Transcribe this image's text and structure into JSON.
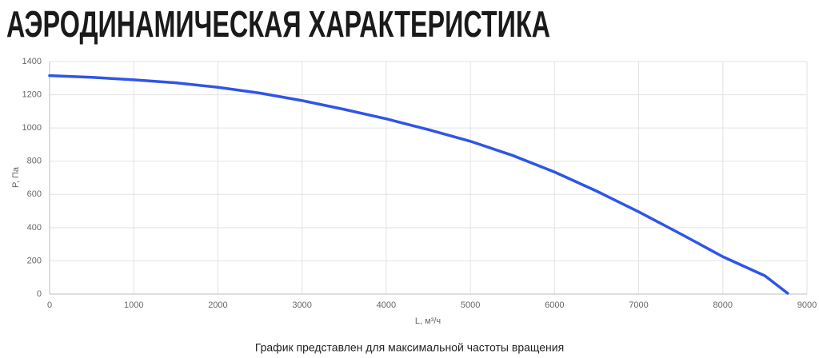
{
  "chart_data": {
    "type": "line",
    "title": "АЭРОДИНАМИЧЕСКАЯ ХАРАКТЕРИСТИКА",
    "x_label": "L, м³/ч",
    "y_label": "P, Па",
    "note": "График представлен для максимальной частоты вращения",
    "x": [
      0,
      500,
      1000,
      1500,
      2000,
      2500,
      3000,
      3500,
      4000,
      4500,
      5000,
      5500,
      6000,
      6500,
      7000,
      7500,
      8000,
      8500,
      8770
    ],
    "series": [
      {
        "color": "#2f55e8",
        "values": [
          1315,
          1305,
          1290,
          1272,
          1245,
          1210,
          1165,
          1112,
          1055,
          990,
          920,
          835,
          735,
          620,
          495,
          362,
          225,
          110,
          5
        ]
      }
    ],
    "xlim": [
      0,
      9000
    ],
    "xticks": [
      0,
      1000,
      2000,
      3000,
      4000,
      5000,
      6000,
      7000,
      8000,
      9000
    ],
    "ylim": [
      0,
      1400
    ],
    "yticks": [
      0,
      200,
      400,
      600,
      800,
      1000,
      1200,
      1400
    ],
    "grid": true
  }
}
